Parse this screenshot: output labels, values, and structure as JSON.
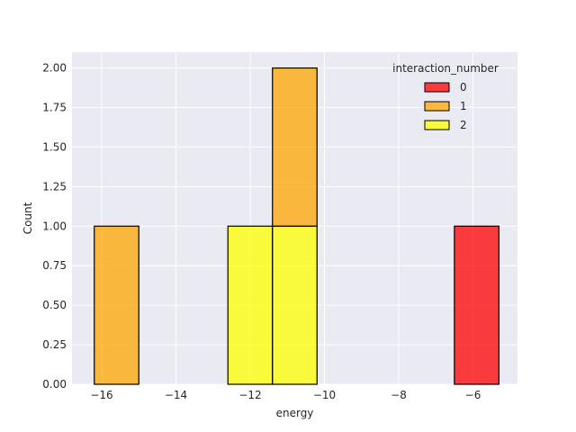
{
  "chart_data": {
    "type": "bar",
    "subtype": "stacked histogram",
    "xlabel": "energy",
    "ylabel": "Count",
    "xlim": [
      -16.8,
      -4.8
    ],
    "ylim": [
      0,
      2.1
    ],
    "x_ticks": [
      -16,
      -14,
      -12,
      -10,
      -8,
      -6
    ],
    "x_tick_labels": [
      "−16",
      "−14",
      "−12",
      "−10",
      "−8",
      "−6"
    ],
    "y_ticks": [
      0,
      0.25,
      0.5,
      0.75,
      1.0,
      1.25,
      1.5,
      1.75,
      2.0
    ],
    "y_tick_labels": [
      "0.00",
      "0.25",
      "0.50",
      "0.75",
      "1.00",
      "1.25",
      "1.50",
      "1.75",
      "2.00"
    ],
    "grid": true,
    "legend": {
      "title": "interaction_number",
      "placement": "top-right",
      "entries": [
        {
          "label": "0",
          "color": "#ff0000"
        },
        {
          "label": "1",
          "color": "#ffa500"
        },
        {
          "label": "2",
          "color": "#ffff00"
        }
      ]
    },
    "bars": [
      {
        "x0": -16.2,
        "x1": -15.0,
        "base": 0,
        "value": 1,
        "group": "1"
      },
      {
        "x0": -12.6,
        "x1": -11.4,
        "base": 0,
        "value": 1,
        "group": "2"
      },
      {
        "x0": -11.4,
        "x1": -10.2,
        "base": 0,
        "value": 1,
        "group": "2"
      },
      {
        "x0": -11.4,
        "x1": -10.2,
        "base": 1,
        "value": 1,
        "group": "1"
      },
      {
        "x0": -6.5,
        "x1": -5.3,
        "base": 0,
        "value": 1,
        "group": "0"
      }
    ],
    "colors": {
      "0": "#ff0000",
      "1": "#ffa500",
      "2": "#ffff00"
    },
    "background": "#eaeaf2",
    "grid_color": "#ffffff",
    "bar_opacity": 0.75,
    "edge_color": "#000000"
  }
}
